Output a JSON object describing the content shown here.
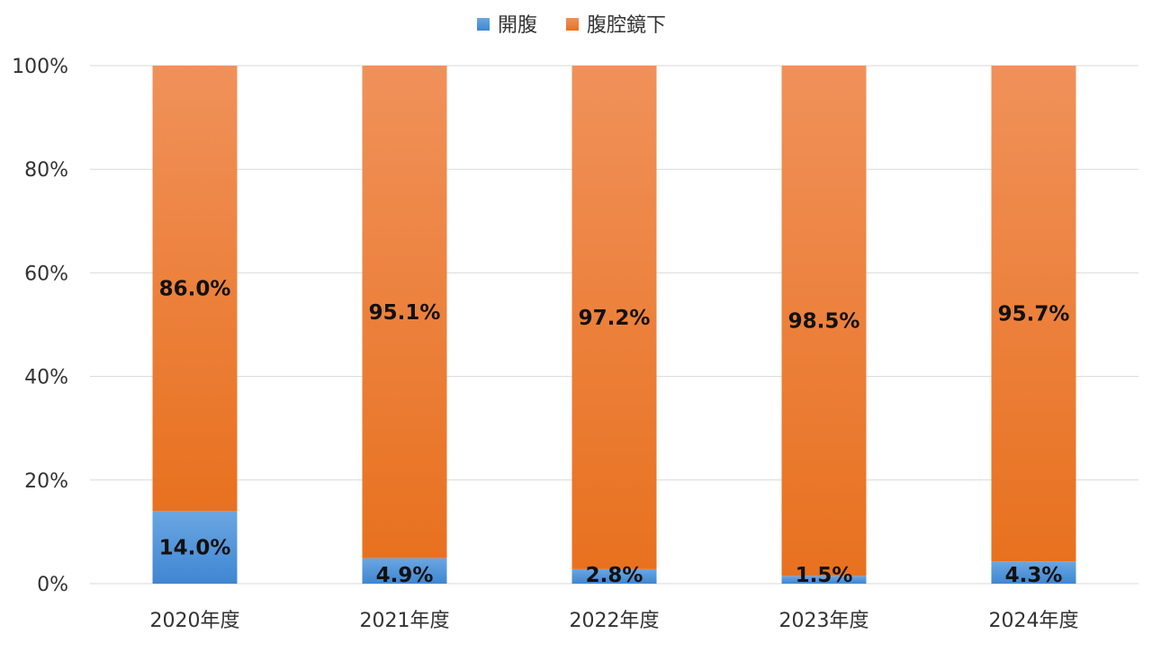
{
  "chart_data": {
    "type": "bar",
    "stacked": true,
    "percent": true,
    "categories": [
      "2020年度",
      "2021年度",
      "2022年度",
      "2023年度",
      "2024年度"
    ],
    "series": [
      {
        "name": "開腹",
        "color": "#4a8fd6",
        "values": [
          14.0,
          4.9,
          2.8,
          1.5,
          4.3
        ],
        "labels": [
          "14.0%",
          "4.9%",
          "2.8%",
          "1.5%",
          "4.3%"
        ]
      },
      {
        "name": "腹腔鏡下",
        "color": "#ed7d31",
        "values": [
          86.0,
          95.1,
          97.2,
          98.5,
          95.7
        ],
        "labels": [
          "86.0%",
          "95.1%",
          "97.2%",
          "98.5%",
          "95.7%"
        ]
      }
    ],
    "ylim": [
      0,
      100
    ],
    "yticks": [
      "0%",
      "20%",
      "40%",
      "60%",
      "80%",
      "100%"
    ],
    "grid": true,
    "legend": "top-center"
  }
}
